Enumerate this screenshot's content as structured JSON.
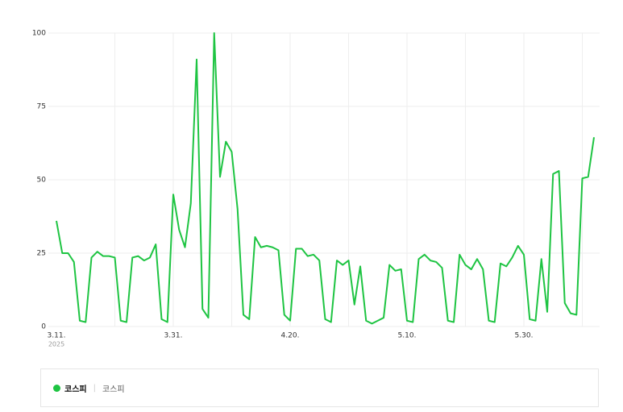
{
  "chart_data": {
    "type": "line",
    "categories": [
      "3.11.",
      null,
      null,
      null,
      null,
      null,
      null,
      null,
      null,
      null,
      null,
      null,
      null,
      null,
      null,
      null,
      null,
      null,
      null,
      null,
      "3.31.",
      null,
      null,
      null,
      null,
      null,
      null,
      null,
      null,
      null,
      null,
      null,
      null,
      null,
      null,
      null,
      null,
      null,
      null,
      null,
      "4.20.",
      null,
      null,
      null,
      null,
      null,
      null,
      null,
      null,
      null,
      null,
      null,
      null,
      null,
      null,
      null,
      null,
      null,
      null,
      null,
      "5.10.",
      null,
      null,
      null,
      null,
      null,
      null,
      null,
      null,
      null,
      null,
      null,
      null,
      null,
      null,
      null,
      null,
      null,
      null,
      null,
      "5.30.",
      null,
      null,
      null,
      null,
      null,
      null,
      null,
      null,
      null,
      null,
      null,
      null
    ],
    "year_label": "2025",
    "series": [
      {
        "name": "코스피",
        "color": "#1ec442",
        "values": [
          36,
          25,
          25,
          22,
          2,
          1.5,
          23.5,
          25.5,
          24,
          24,
          23.5,
          2,
          1.5,
          23.5,
          24,
          22.5,
          23.5,
          28,
          2.5,
          1.5,
          45,
          33,
          27,
          42,
          91,
          6,
          3,
          100,
          51,
          63,
          59.5,
          40,
          4,
          2.5,
          30.5,
          27,
          27.5,
          27,
          26,
          4,
          2,
          26.5,
          26.5,
          24,
          24.5,
          22.5,
          2.5,
          1.5,
          22.5,
          21,
          22.5,
          7.5,
          20.5,
          2,
          1,
          2,
          3,
          21,
          19,
          19.5,
          2,
          1.5,
          23,
          24.5,
          22.5,
          22,
          20,
          2,
          1.5,
          24.5,
          21,
          19.5,
          23,
          19.5,
          2,
          1.5,
          21.5,
          20.5,
          23.5,
          27.5,
          24.5,
          2.5,
          2,
          23,
          5,
          52,
          53,
          8,
          4.5,
          4,
          50.5,
          51,
          64.5
        ]
      }
    ],
    "legend_keywords": "코스피",
    "ylim": [
      0,
      100
    ],
    "yticks": [
      0,
      25,
      50,
      75,
      100
    ],
    "grid": true
  }
}
